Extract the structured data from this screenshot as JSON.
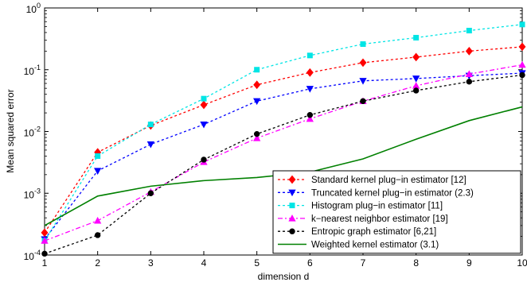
{
  "chart_data": {
    "type": "line",
    "xlabel": "dimension d",
    "ylabel": "Mean squared error",
    "xlim": [
      1,
      10
    ],
    "ylim": [
      0.0001,
      1
    ],
    "yscale": "log",
    "grid": false,
    "legend_position": "bottom-right",
    "x_ticks": [
      1,
      2,
      3,
      4,
      5,
      6,
      7,
      8,
      9,
      10
    ],
    "y_ticks": [
      {
        "value": 1,
        "exp": "0"
      },
      {
        "value": 0.1,
        "exp": "-1"
      },
      {
        "value": 0.01,
        "exp": "-2"
      },
      {
        "value": 0.001,
        "exp": "-3"
      },
      {
        "value": 0.0001,
        "exp": "-4"
      }
    ],
    "y_tick_base": "10",
    "x": [
      1,
      2,
      3,
      4,
      5,
      6,
      7,
      8,
      9,
      10
    ],
    "series": [
      {
        "name": "Standard kernel plug−in estimator [12]",
        "color": "#ff0000",
        "dash": "3,3",
        "marker": "diamond",
        "values": [
          0.00023,
          0.0046,
          0.0125,
          0.027,
          0.057,
          0.09,
          0.13,
          0.16,
          0.2,
          0.235
        ]
      },
      {
        "name": "Truncated kernel plug−in estimator (2.3)",
        "color": "#0000ff",
        "dash": "3,3",
        "marker": "triangle-down",
        "values": [
          0.00018,
          0.0023,
          0.0062,
          0.013,
          0.031,
          0.049,
          0.066,
          0.072,
          0.08,
          0.088
        ]
      },
      {
        "name": "Histogram plug−in estimator [11]",
        "color": "#00e5e5",
        "dash": "3,3",
        "marker": "square",
        "values": [
          0.00017,
          0.004,
          0.013,
          0.034,
          0.1,
          0.17,
          0.26,
          0.33,
          0.43,
          0.54
        ]
      },
      {
        "name": "k−nearest neighbor estimator [19]",
        "color": "#ff00ff",
        "dash": "6,3,2,3",
        "marker": "triangle-up",
        "values": [
          0.00017,
          0.00036,
          0.00105,
          0.0032,
          0.0078,
          0.016,
          0.031,
          0.055,
          0.085,
          0.12
        ]
      },
      {
        "name": "Entropic graph estimator [6,21]",
        "color": "#000000",
        "dash": "3,3",
        "marker": "circle",
        "values": [
          0.000105,
          0.00021,
          0.001,
          0.0035,
          0.0091,
          0.0185,
          0.031,
          0.046,
          0.064,
          0.082
        ]
      },
      {
        "name": "Weighted kernel estimator (3.1)",
        "color": "#008000",
        "dash": "",
        "marker": "none",
        "values": [
          0.0003,
          0.0009,
          0.0013,
          0.0016,
          0.0018,
          0.0022,
          0.0036,
          0.0075,
          0.015,
          0.025
        ]
      }
    ]
  }
}
